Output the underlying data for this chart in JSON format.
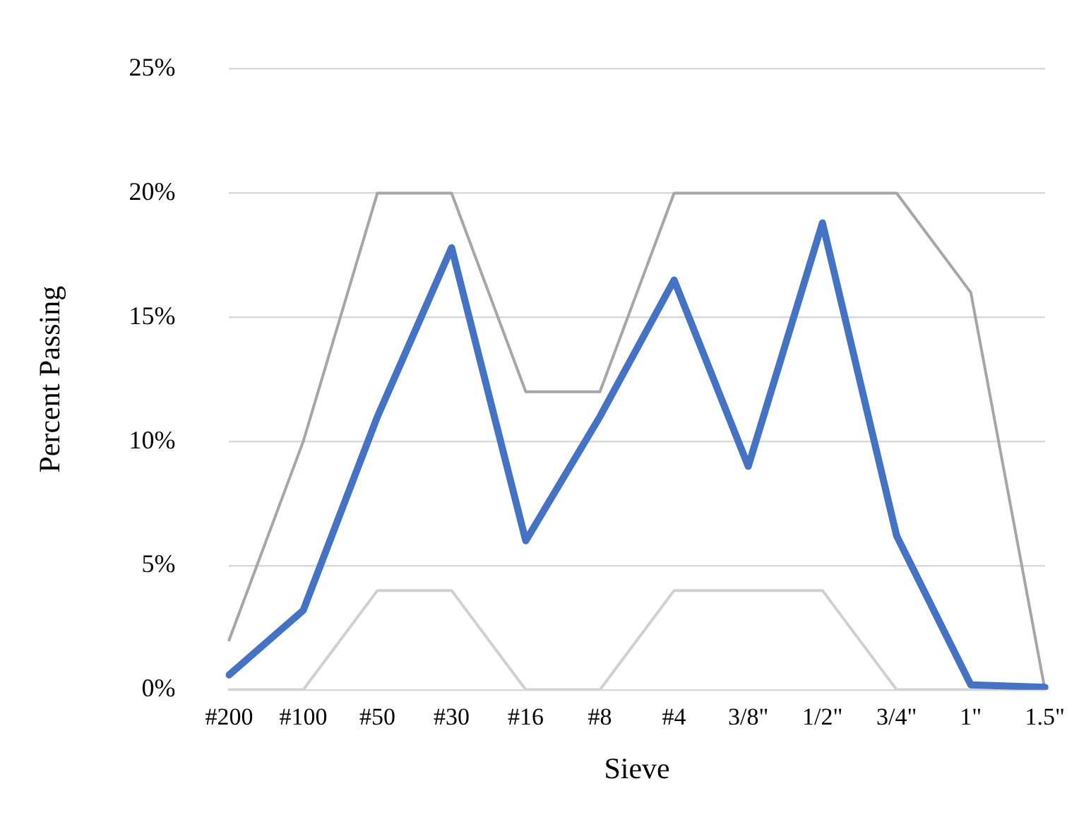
{
  "chart_data": {
    "type": "line",
    "xlabel": "Sieve",
    "ylabel": "Percent Passing",
    "categories": [
      "#200",
      "#100",
      "#50",
      "#30",
      "#16",
      "#8",
      "#4",
      "3/8\"",
      "1/2\"",
      "3/4\"",
      "1\"",
      "1.5\""
    ],
    "series": [
      {
        "color": "#a6a6a6",
        "values": [
          2,
          10,
          20,
          20,
          12,
          12,
          20,
          20,
          20,
          20,
          16,
          0
        ]
      },
      {
        "color": "#d0d0d0",
        "values": [
          0,
          0,
          4,
          4,
          0,
          0,
          4,
          4,
          4,
          0,
          0,
          0
        ]
      },
      {
        "color": "#4472c4",
        "values": [
          0.6,
          3.2,
          11,
          17.8,
          6,
          11,
          16.5,
          9,
          18.8,
          6.2,
          0.2,
          0.1
        ]
      }
    ],
    "ylim": [
      0,
      25
    ],
    "yticks": [
      {
        "value": 0,
        "label": "0%"
      },
      {
        "value": 5,
        "label": "5%"
      },
      {
        "value": 10,
        "label": "10%"
      },
      {
        "value": 15,
        "label": "15%"
      },
      {
        "value": 20,
        "label": "20%"
      },
      {
        "value": 25,
        "label": "25%"
      }
    ],
    "grid": "y",
    "legend": false,
    "marker": "none",
    "line_style": "solid"
  }
}
